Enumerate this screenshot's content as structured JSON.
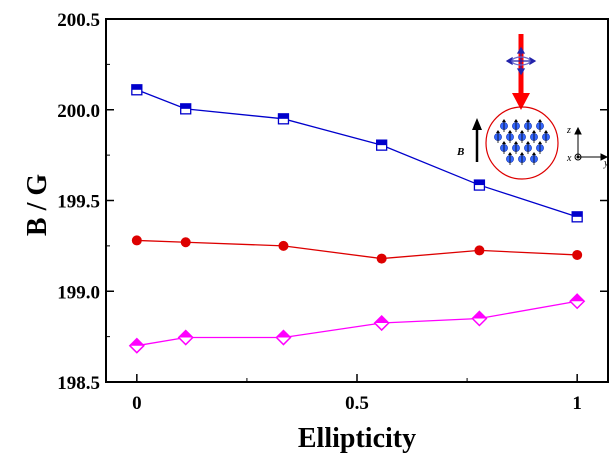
{
  "chart_data": {
    "type": "line",
    "xlabel": "Ellipticity",
    "ylabel": "B / G",
    "xlim": [
      -0.07,
      1.07
    ],
    "ylim": [
      198.5,
      200.5
    ],
    "x_ticks": [
      "0",
      "0.5",
      "1"
    ],
    "y_ticks": [
      "198.5",
      "199.0",
      "199.5",
      "200.0",
      "200.5"
    ],
    "x_tick_values": [
      0,
      0.5,
      1
    ],
    "y_tick_values": [
      198.5,
      199.0,
      199.5,
      200.0,
      200.5
    ],
    "grid": false,
    "x": [
      0,
      0.111,
      0.333,
      0.556,
      0.778,
      1.0
    ],
    "series": [
      {
        "marker": "half-square",
        "color": "#0000cc",
        "values": [
          200.11,
          200.005,
          199.95,
          199.805,
          199.585,
          199.41
        ]
      },
      {
        "marker": "circle",
        "color": "#dd0000",
        "values": [
          199.28,
          199.27,
          199.25,
          199.18,
          199.225,
          199.2
        ]
      },
      {
        "marker": "half-diamond",
        "color": "#ff00ff",
        "values": [
          198.7,
          198.745,
          198.745,
          198.825,
          198.85,
          198.945
        ]
      }
    ],
    "inset": {
      "field_label": "B",
      "axis_labels": {
        "z": "z",
        "x": "x",
        "y": "y"
      },
      "beam_color": "#ff0000",
      "atom_color": "#3366ff"
    }
  }
}
